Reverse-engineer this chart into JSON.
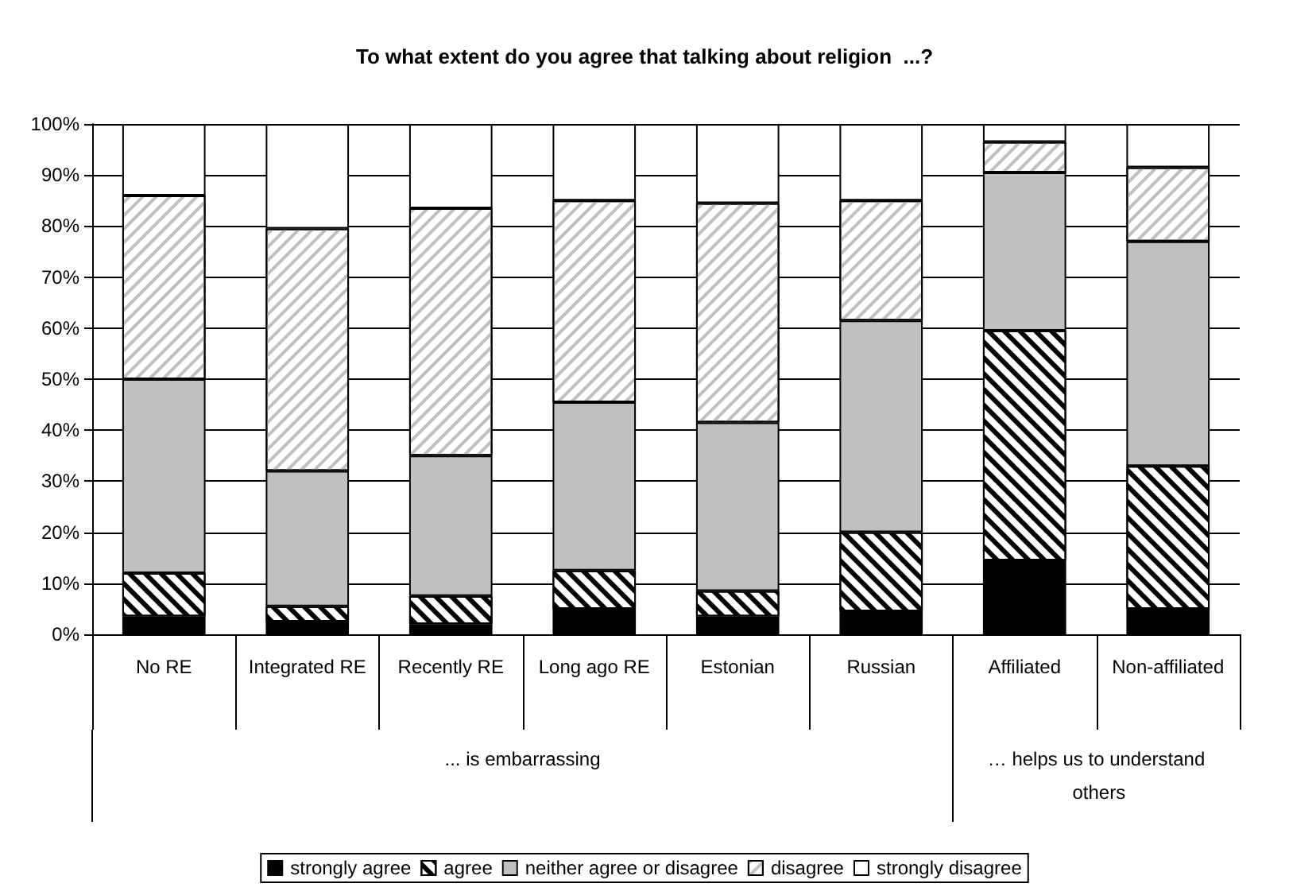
{
  "chart_data": {
    "type": "bar",
    "stacked": true,
    "title": "To what extent do you agree that talking about religion  ...?",
    "categories": [
      "No RE",
      "Integrated RE",
      "Recently RE",
      "Long ago RE",
      "Estonian",
      "Russian",
      "Affiliated",
      "Non-affiliated"
    ],
    "series": [
      {
        "name": "strongly agree",
        "color": "#000000",
        "values": [
          3.5,
          2.5,
          2,
          5,
          3.5,
          4.5,
          14.5,
          5
        ]
      },
      {
        "name": "agree",
        "color": "#ffffff",
        "values": [
          8.5,
          3,
          5.5,
          7.5,
          5,
          15.5,
          45,
          28
        ]
      },
      {
        "name": "neither agree or disagree",
        "color": "#c0c0c0",
        "values": [
          38,
          26.5,
          27.5,
          33,
          33,
          41.5,
          31,
          44
        ]
      },
      {
        "name": "disagree",
        "color": "#ffffff",
        "values": [
          36,
          47.5,
          48.5,
          39.5,
          43,
          23.5,
          6,
          14.5
        ]
      },
      {
        "name": "strongly disagree",
        "color": "#ffffff",
        "values": [
          14,
          20.5,
          16.5,
          15,
          15.5,
          15,
          3.5,
          8.5
        ]
      }
    ],
    "ylim": [
      0,
      100
    ],
    "yticks": [
      {
        "value": 0,
        "label": "0%"
      },
      {
        "value": 10,
        "label": "10%"
      },
      {
        "value": 20,
        "label": "20%"
      },
      {
        "value": 30,
        "label": "30%"
      },
      {
        "value": 40,
        "label": "40%"
      },
      {
        "value": 50,
        "label": "50%"
      },
      {
        "value": 60,
        "label": "60%"
      },
      {
        "value": 70,
        "label": "70%"
      },
      {
        "value": 80,
        "label": "80%"
      },
      {
        "value": 90,
        "label": "90%"
      },
      {
        "value": 100,
        "label": "100%"
      }
    ],
    "grid": "y",
    "legend": "bottom",
    "annotations": [
      "... is embarrassing",
      "… helps us to understand others"
    ]
  }
}
